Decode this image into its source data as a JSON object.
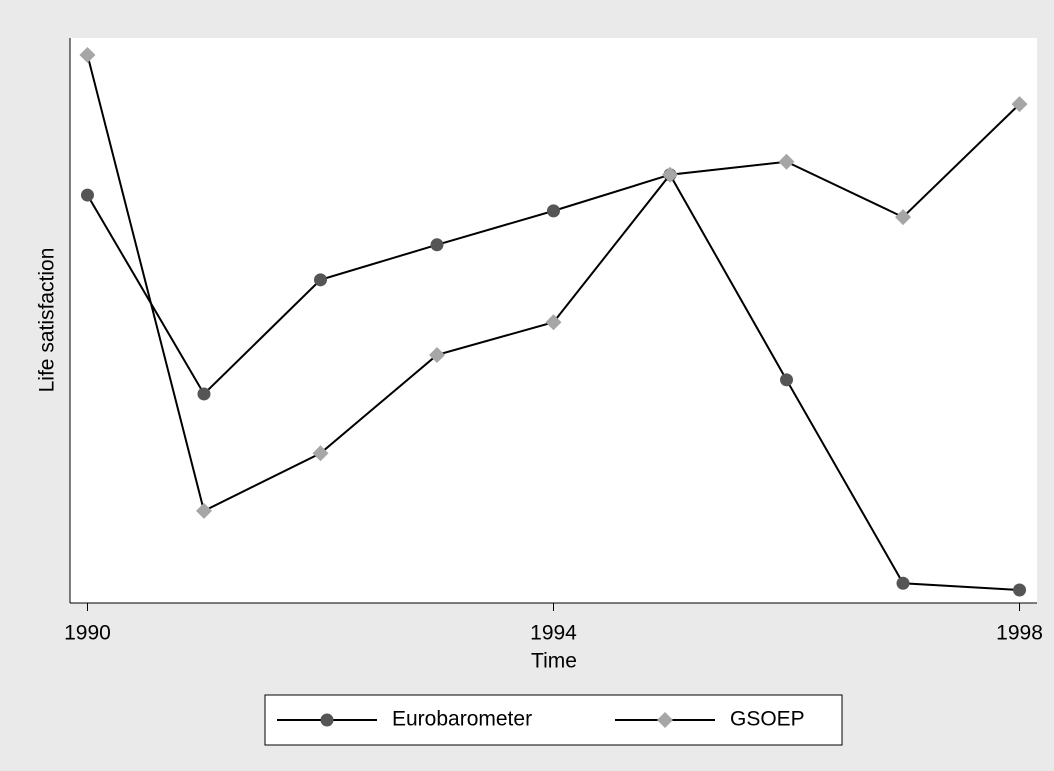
{
  "chart_data": {
    "type": "line",
    "x_label": "Time",
    "y_label": "Life satisfaction",
    "x": [
      1990,
      1991,
      1992,
      1993,
      1994,
      1995,
      1996,
      1997,
      1998
    ],
    "xlim": [
      1989.85,
      1998.15
    ],
    "xticks": [
      1990,
      1994,
      1998
    ],
    "ylim": [
      0,
      100
    ],
    "series": [
      {
        "name": "Eurobarometer",
        "color": "#555555",
        "marker": "circle",
        "values": [
          72.2,
          37.0,
          57.2,
          63.4,
          69.4,
          75.8,
          39.5,
          3.5,
          2.3
        ]
      },
      {
        "name": "GSOEP",
        "color": "#a6a6a6",
        "marker": "diamond",
        "values": [
          97.0,
          16.3,
          26.5,
          43.9,
          49.7,
          75.8,
          78.1,
          68.3,
          88.3
        ]
      }
    ],
    "line_color": "#000000"
  }
}
